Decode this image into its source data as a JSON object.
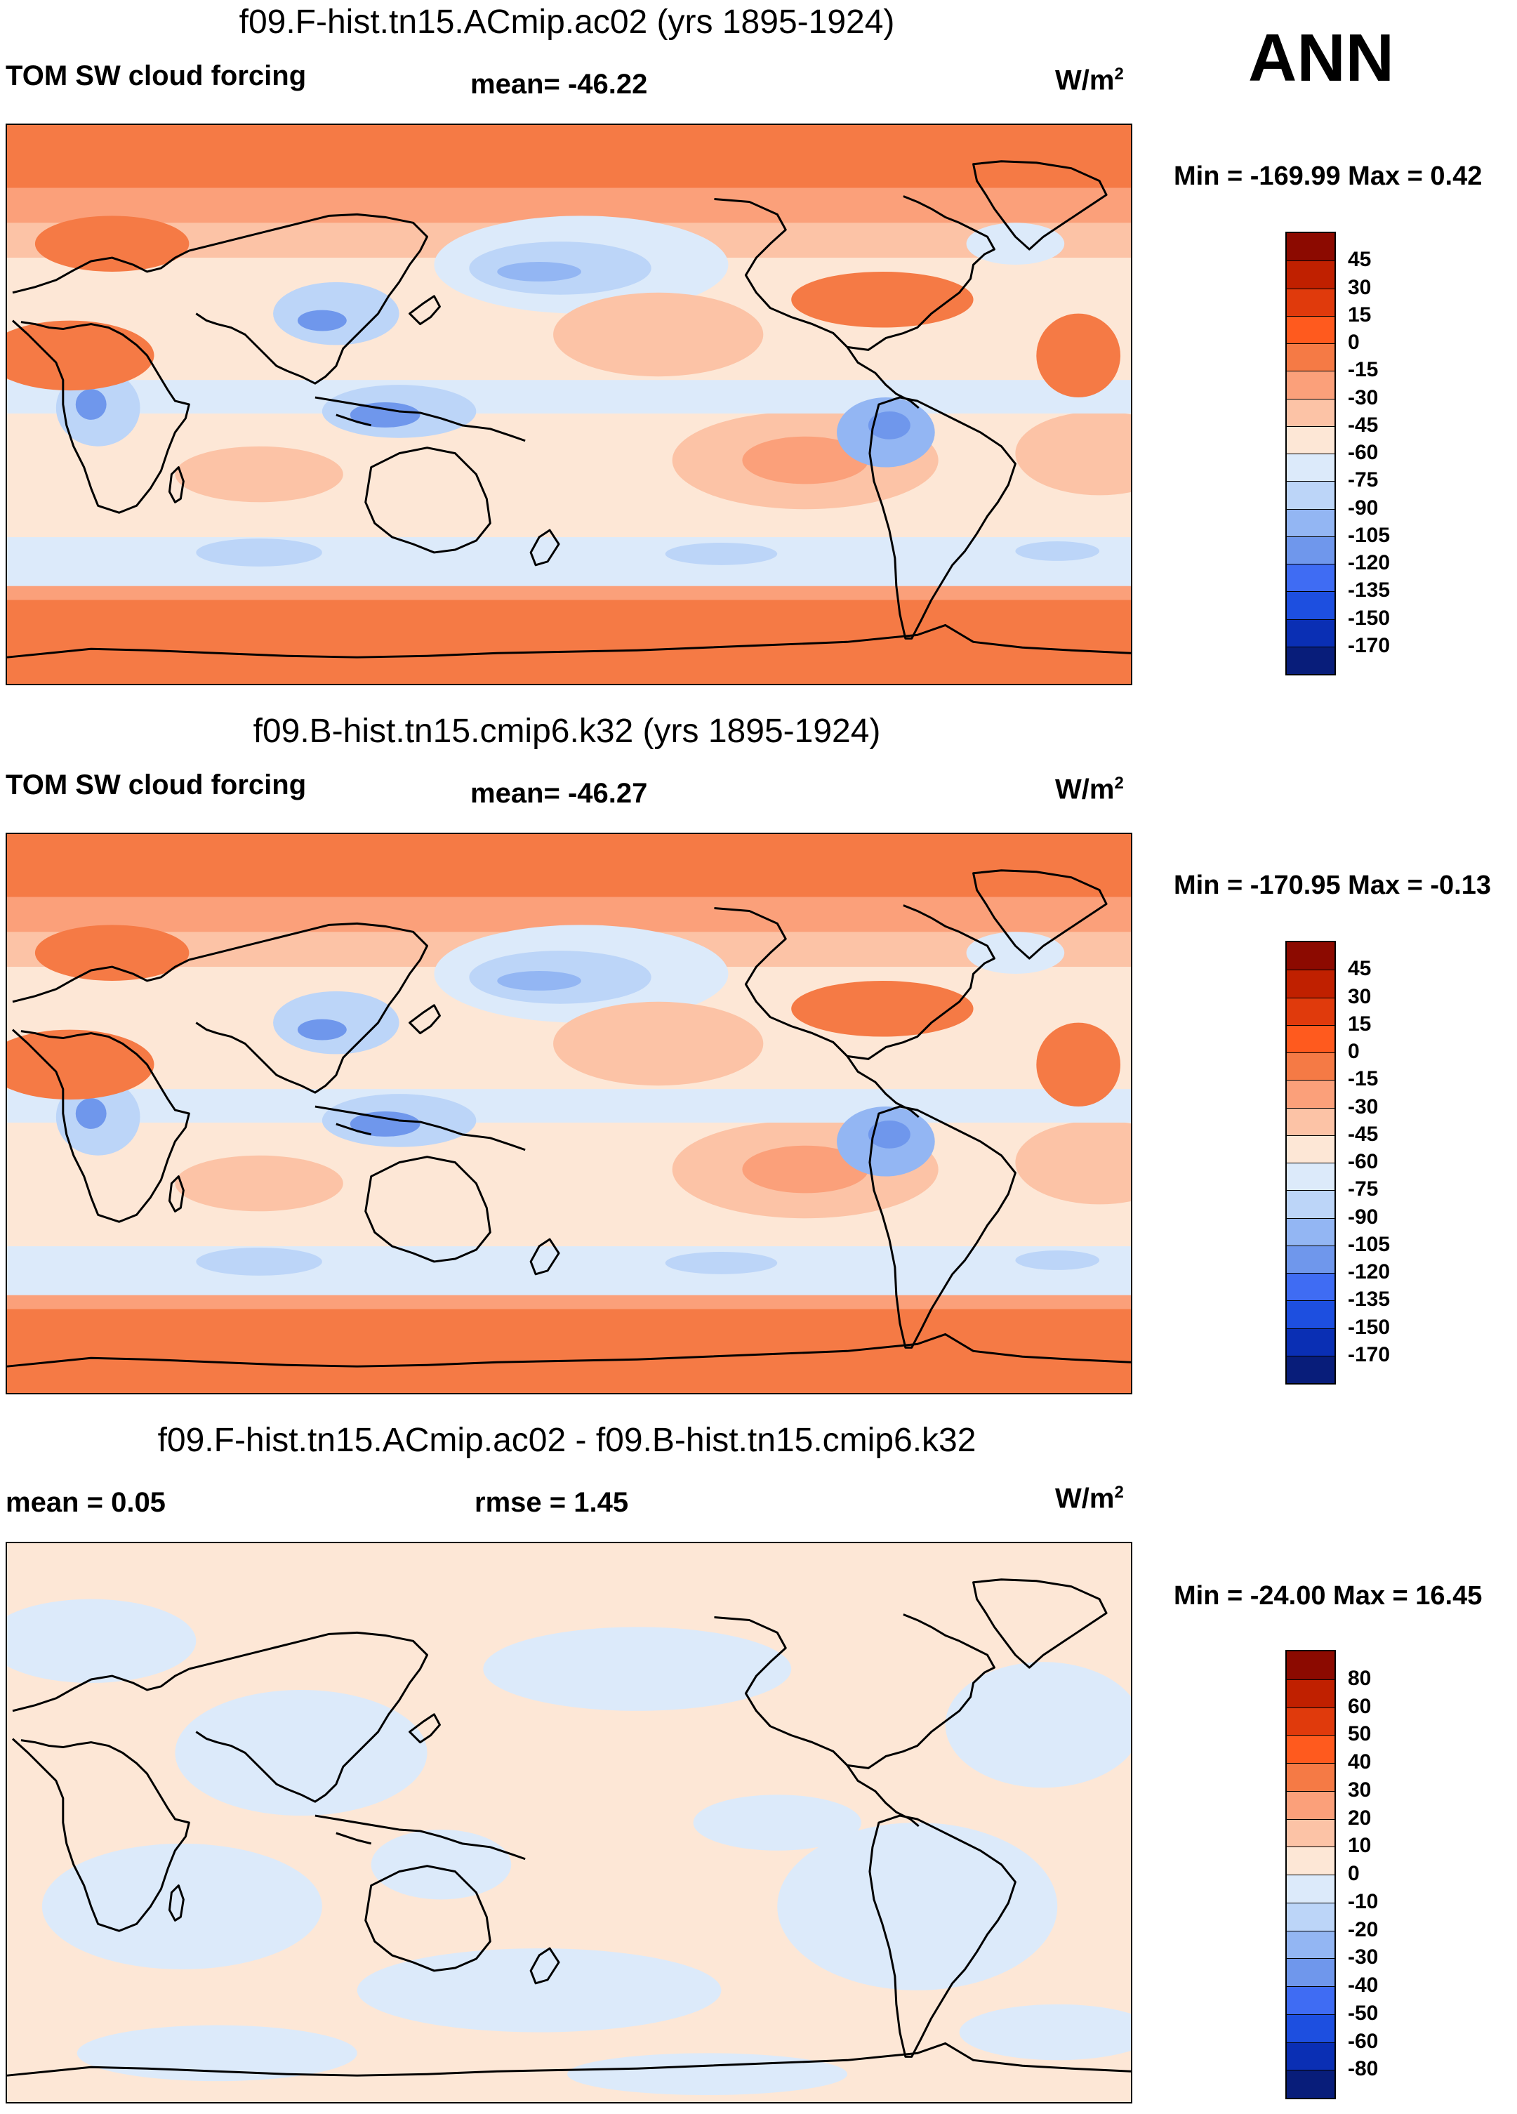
{
  "season": "ANN",
  "panels": [
    {
      "title": "f09.F-hist.tn15.ACmip.ac02 (yrs 1895-1924)",
      "left_text": "TOM SW cloud forcing",
      "center_text": "mean= -46.22",
      "units": "W/m",
      "units_sup": "2",
      "minmax": "Min = -169.99 Max =   0.42",
      "map_id": "mean",
      "colorbar": {
        "labels": [
          "45",
          "30",
          "15",
          "0",
          "-15",
          "-30",
          "-45",
          "-60",
          "-75",
          "-90",
          "-105",
          "-120",
          "-135",
          "-150",
          "-170"
        ],
        "colors": [
          "#8c0a00",
          "#c02000",
          "#e03a0c",
          "#ff5a1e",
          "#f57a45",
          "#fba07a",
          "#fcc3a6",
          "#fde7d6",
          "#dceafa",
          "#bcd5f8",
          "#93b6f3",
          "#6f97ec",
          "#3f6cf3",
          "#1d4fe0",
          "#0a2fb4",
          "#081d7a"
        ]
      }
    },
    {
      "title": "f09.B-hist.tn15.cmip6.k32 (yrs 1895-1924)",
      "left_text": "TOM SW cloud forcing",
      "center_text": "mean= -46.27",
      "units": "W/m",
      "units_sup": "2",
      "minmax": "Min = -170.95 Max =  -0.13",
      "map_id": "mean",
      "colorbar": {
        "labels": [
          "45",
          "30",
          "15",
          "0",
          "-15",
          "-30",
          "-45",
          "-60",
          "-75",
          "-90",
          "-105",
          "-120",
          "-135",
          "-150",
          "-170"
        ],
        "colors": [
          "#8c0a00",
          "#c02000",
          "#e03a0c",
          "#ff5a1e",
          "#f57a45",
          "#fba07a",
          "#fcc3a6",
          "#fde7d6",
          "#dceafa",
          "#bcd5f8",
          "#93b6f3",
          "#6f97ec",
          "#3f6cf3",
          "#1d4fe0",
          "#0a2fb4",
          "#081d7a"
        ]
      }
    },
    {
      "title": "f09.F-hist.tn15.ACmip.ac02 - f09.B-hist.tn15.cmip6.k32",
      "left_text": "mean =   0.05",
      "center_text": "rmse =   1.45",
      "units": "W/m",
      "units_sup": "2",
      "minmax": "Min = -24.00 Max =  16.45",
      "map_id": "diff",
      "colorbar": {
        "labels": [
          "80",
          "60",
          "50",
          "40",
          "30",
          "20",
          "10",
          "0",
          "-10",
          "-20",
          "-30",
          "-40",
          "-50",
          "-60",
          "-80"
        ],
        "colors": [
          "#8c0a00",
          "#c02000",
          "#e03a0c",
          "#ff5a1e",
          "#f57a45",
          "#fba07a",
          "#fcc3a6",
          "#fde7d6",
          "#dceafa",
          "#bcd5f8",
          "#93b6f3",
          "#6f97ec",
          "#3f6cf3",
          "#1d4fe0",
          "#0a2fb4",
          "#081d7a"
        ]
      }
    }
  ]
}
